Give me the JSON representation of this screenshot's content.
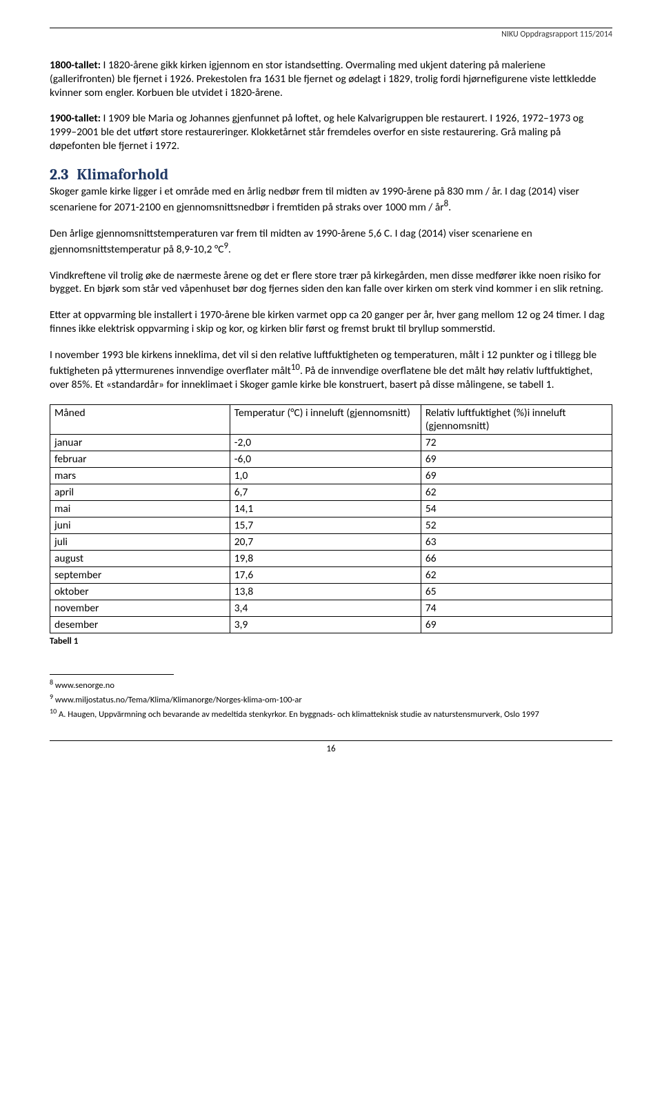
{
  "header": {
    "report_ref": "NIKU Oppdragsrapport 115/2014"
  },
  "paragraphs": {
    "p1_bold": "1800-tallet:",
    "p1_rest": " I 1820-årene gikk kirken igjennom en stor istandsetting. Overmaling med ukjent datering på maleriene (gallerifronten) ble fjernet i 1926. Prekestolen fra 1631 ble fjernet og ødelagt i 1829, trolig fordi hjørnefigurene viste lettkledde kvinner som engler. Korbuen ble utvidet i 1820-årene.",
    "p2_bold": "1900-tallet:",
    "p2_rest": " I 1909 ble Maria og Johannes gjenfunnet på loftet, og hele Kalvarigruppen ble restaurert. I 1926, 1972–1973 og 1999–2001 ble det utført store restaureringer. Klokketårnet står fremdeles overfor en siste restaurering. Grå maling på døpefonten ble fjernet i 1972."
  },
  "section": {
    "num": "2.3",
    "title": "Klimaforhold"
  },
  "klima": {
    "p1": "Skoger gamle kirke ligger i et område med en årlig nedbør frem til midten av 1990-årene på 830 mm / år. I dag (2014) viser scenariene for 2071-2100 en gjennomsnittsnedbør i fremtiden på straks over 1000 mm / år",
    "p1_sup": "8",
    "p1_end": ".",
    "p2": "Den årlige gjennomsnittstemperaturen var frem til midten av 1990-årene 5,6 C. I dag (2014) viser scenariene en gjennomsnittstemperatur på 8,9-10,2 °C",
    "p2_sup": "9",
    "p2_end": ".",
    "p3": "Vindkreftene vil trolig øke de nærmeste årene og det er flere store trær på kirkegården, men disse medfører ikke noen risiko for bygget. En bjørk som står ved våpenhuset bør dog fjernes siden den kan falle over kirken om sterk vind kommer i en slik retning.",
    "p4": "Etter at oppvarming ble installert i 1970-årene ble kirken varmet opp ca 20 ganger per år, hver gang mellom 12 og 24 timer. I dag finnes ikke elektrisk oppvarming i skip og kor, og kirken blir først og fremst brukt til bryllup sommerstid.",
    "p5a": "I november 1993 ble kirkens inneklima, det vil si den relative luftfuktigheten og temperaturen, målt i 12 punkter og i tillegg ble fuktigheten på yttermurenes innvendige overflater målt",
    "p5_sup": "10",
    "p5b": ". På de innvendige overflatene ble det målt høy relativ luftfuktighet, over 85%. Et «standardår» for inneklimaet i Skoger gamle kirke ble konstruert, basert på disse målingene, se tabell 1."
  },
  "table": {
    "columns": [
      "Måned",
      "Temperatur (°C) i inneluft (gjennomsnitt)",
      "Relativ luftfuktighet (%)i inneluft (gjennomsnitt)"
    ],
    "rows": [
      [
        "januar",
        "-2,0",
        "72"
      ],
      [
        "februar",
        "-6,0",
        "69"
      ],
      [
        "mars",
        "1,0",
        "69"
      ],
      [
        "april",
        "6,7",
        "62"
      ],
      [
        "mai",
        "14,1",
        "54"
      ],
      [
        "juni",
        "15,7",
        "52"
      ],
      [
        "juli",
        "20,7",
        "63"
      ],
      [
        "august",
        "19,8",
        "66"
      ],
      [
        "september",
        "17,6",
        "62"
      ],
      [
        "oktober",
        "13,8",
        "65"
      ],
      [
        "november",
        "3,4",
        "74"
      ],
      [
        "desember",
        "3,9",
        "69"
      ]
    ],
    "caption": "Tabell 1",
    "col_widths": [
      "32%",
      "34%",
      "34%"
    ]
  },
  "footnotes": {
    "f8": "www.senorge.no",
    "f9": "www.miljostatus.no/Tema/Klima/Klimanorge/Norges-klima-om-100-ar",
    "f10": "A. Haugen, Uppvärmning och bevarande av medeltida stenkyrkor. En byggnads- och klimatteknisk studie av naturstensmurverk, Oslo 1997"
  },
  "footer": {
    "page_num": "16"
  }
}
